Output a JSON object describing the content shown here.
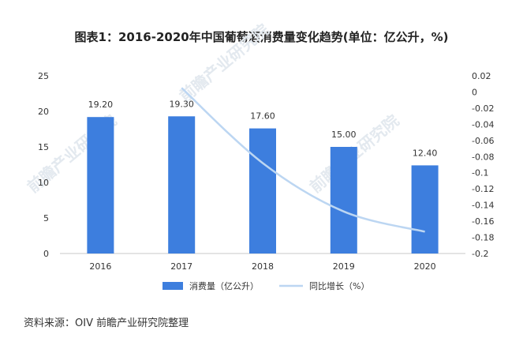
{
  "title": "图表1：2016-2020年中国葡萄酒消费量变化趋势(单位：亿公升，%)",
  "source": "资料来源：OIV 前瞻产业研究院整理",
  "watermark": "前瞻产业研究院",
  "chart_data": {
    "type": "bar",
    "categories": [
      "2016",
      "2017",
      "2018",
      "2019",
      "2020"
    ],
    "series": [
      {
        "name": "消费量（亿公升）",
        "type": "bar",
        "axis": "left",
        "color": "#3d7ede",
        "values": [
          19.2,
          19.3,
          17.6,
          15.0,
          12.4
        ],
        "data_labels": [
          "19.20",
          "19.30",
          "17.60",
          "15.00",
          "12.40"
        ]
      },
      {
        "name": "同比增长（%）",
        "type": "line",
        "axis": "right",
        "color": "#bcd6f2",
        "x": [
          "2017",
          "2018",
          "2019",
          "2020"
        ],
        "values": [
          0.005,
          -0.088,
          -0.148,
          -0.173
        ]
      }
    ],
    "y_left": {
      "min": 0,
      "max": 25,
      "ticks": [
        "0",
        "5",
        "10",
        "15",
        "20",
        "25"
      ]
    },
    "y_right": {
      "min": -0.2,
      "max": 0.02,
      "ticks": [
        "0.02",
        "0",
        "-0.02",
        "-0.04",
        "-0.06",
        "-0.08",
        "-0.1",
        "-0.12",
        "-0.14",
        "-0.16",
        "-0.18",
        "-0.2"
      ]
    },
    "grid": false,
    "legend_position": "bottom"
  }
}
